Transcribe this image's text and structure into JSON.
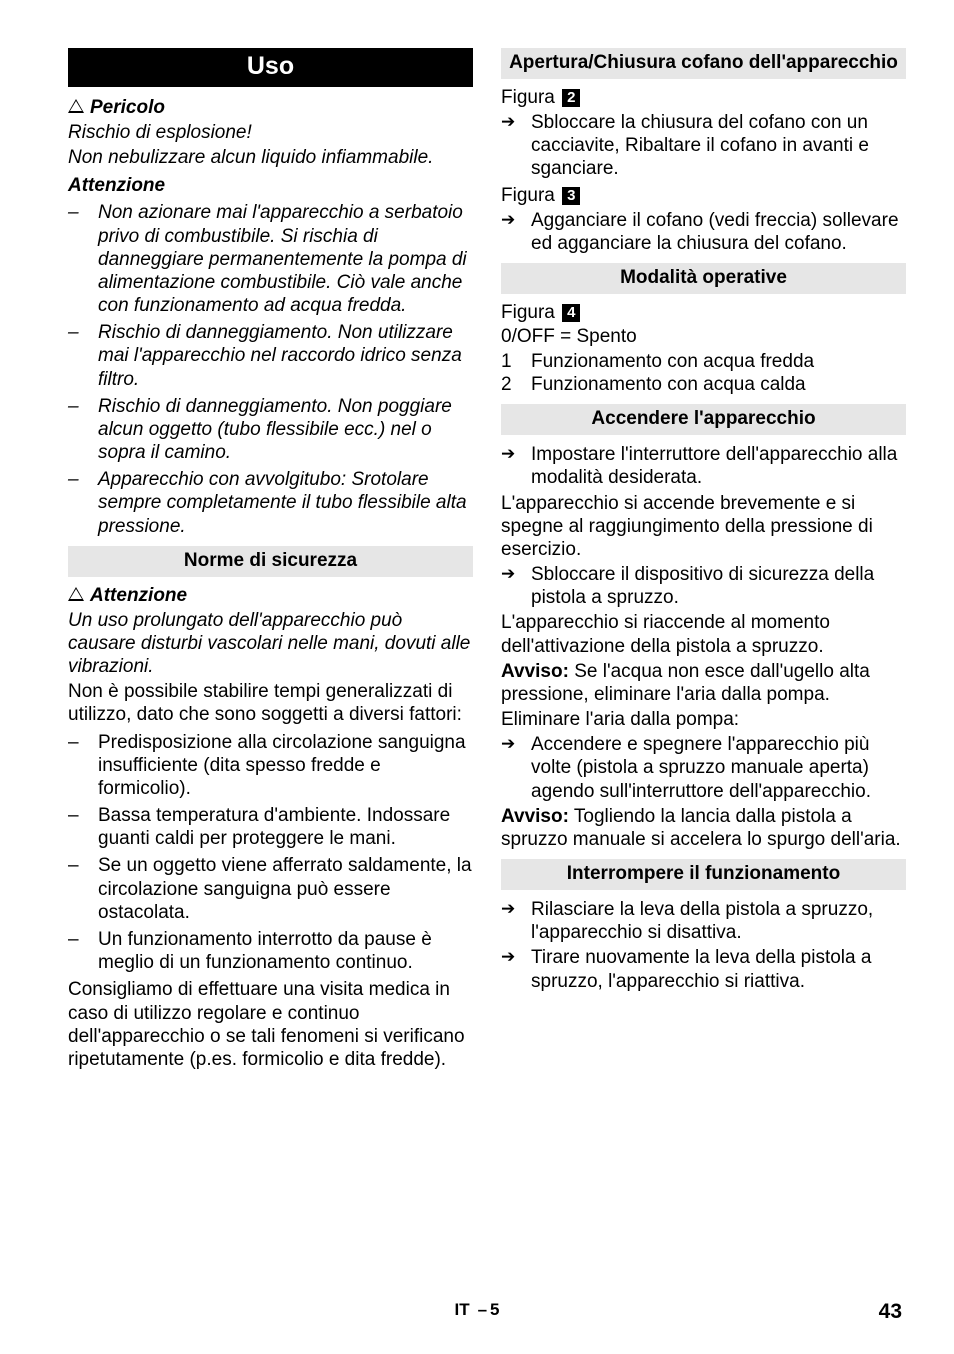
{
  "left": {
    "title": "Uso",
    "pericolo_label": "Pericolo",
    "pericolo_lines": [
      "Rischio di esplosione!",
      "Non nebulizzare alcun liquido infiammabile."
    ],
    "attenzione1": "Attenzione",
    "attenzione1_items": [
      "Non azionare mai l'apparecchio a serbatoio privo di combustibile. Si rischia di danneggiare permanentemente la pompa di alimentazione combustibile. Ciò vale anche con funzionamento ad acqua fredda.",
      "Rischio di danneggiamento. Non utilizzare mai l'apparecchio nel raccordo idrico senza filtro.",
      "Rischio di danneggiamento. Non poggiare alcun oggetto (tubo flessibile ecc.) nel o sopra il camino.",
      "Apparecchio con avvolgitubo: Srotolare sempre completamente il tubo flessibile alta pressione."
    ],
    "norme_title": "Norme di sicurezza",
    "attenzione2_label": "Attenzione",
    "attenzione2_text": "Un uso prolungato dell'apparecchio può causare disturbi vascolari nelle mani, dovuti alle vibrazioni.",
    "body1": "Non è possibile stabilire tempi generalizzati di utilizzo, dato che sono soggetti a diversi fattori:",
    "factors": [
      "Predisposizione alla circolazione sanguigna insufficiente (dita spesso fredde e formicolio).",
      "Bassa temperatura d'ambiente. Indossare guanti caldi per proteggere le mani.",
      "Se un oggetto viene afferrato saldamente, la circolazione sanguigna può essere ostacolata.",
      "Un funzionamento interrotto da pause è meglio di un funzionamento continuo."
    ],
    "body2": "Consigliamo di effettuare una visita medica in caso di utilizzo regolare e continuo dell'apparecchio o se tali fenomeni si verificano ripetutamente (p.es. formicolio e dita fredde)."
  },
  "right": {
    "apertura_title": "Apertura/Chiusura cofano dell'apparecchio",
    "figura": "Figura",
    "fig2": "2",
    "fig2_item": "Sbloccare la chiusura del cofano con un cacciavite, Ribaltare il cofano in avanti e sganciare.",
    "fig3": "3",
    "fig3_item": "Agganciare il cofano (vedi freccia) sollevare ed agganciare la chiusura del cofano.",
    "modalita_title": "Modalità operative",
    "fig4": "4",
    "off_line": "0/OFF = Spento",
    "modes": [
      {
        "n": "1",
        "t": "Funzionamento con acqua fredda"
      },
      {
        "n": "2",
        "t": "Funzionamento con acqua calda"
      }
    ],
    "accendere_title": "Accendere l'apparecchio",
    "acc_item1": "Impostare l'interruttore dell'apparecchio alla modalità desiderata.",
    "acc_body1": "L'apparecchio si accende brevemente e si spegne al raggiungimento della pressione di esercizio.",
    "acc_item2": "Sbloccare il dispositivo di sicurezza della pistola a spruzzo.",
    "acc_body2": "L'apparecchio si riaccende al momento dell'attivazione della pistola a spruzzo.",
    "avviso1_label": "Avviso:",
    "avviso1_text": " Se l'acqua non esce dall'ugello alta pressione, eliminare l'aria dalla pompa.",
    "acc_body3": "Eliminare l'aria dalla pompa:",
    "acc_item3": "Accendere e spegnere l'apparecchio più volte (pistola a spruzzo manuale aperta) agendo sull'interruttore dell'apparecchio.",
    "avviso2_label": "Avviso:",
    "avviso2_text": " Togliendo la lancia dalla pistola a spruzzo manuale si accelera lo spurgo dell'aria.",
    "interrompere_title": "Interrompere il funzionamento",
    "int_items": [
      "Rilasciare la leva della pistola a spruzzo, l'apparecchio si disattiva.",
      "Tirare nuovamente la leva della pistola a spruzzo, l'apparecchio si riattiva."
    ]
  },
  "footer": {
    "lang": "IT",
    "page_rel": "5",
    "page_abs": "43"
  }
}
